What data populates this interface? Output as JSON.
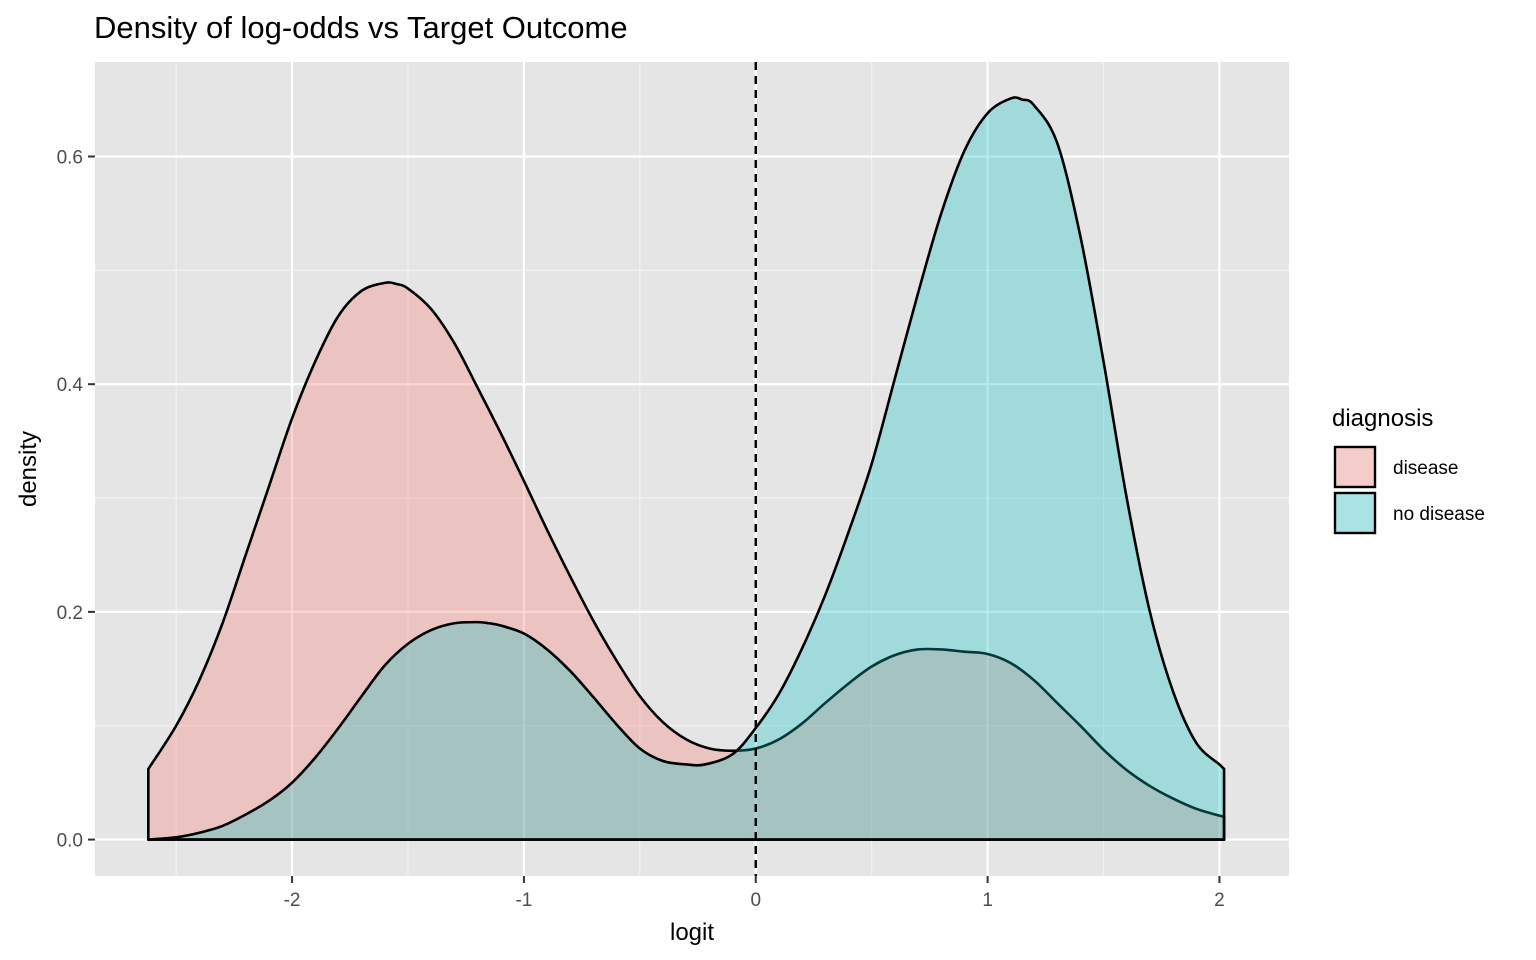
{
  "chart_data": {
    "type": "area",
    "title": "Density of log-odds vs Target Outcome",
    "xlabel": "logit",
    "ylabel": "density",
    "xlim": [
      -2.85,
      2.3
    ],
    "ylim": [
      -0.032,
      0.683
    ],
    "x_ticks": [
      -2,
      -1,
      0,
      1,
      2
    ],
    "x_tick_labels": [
      "-2",
      "-1",
      "0",
      "1",
      "2"
    ],
    "y_ticks": [
      0.0,
      0.2,
      0.4,
      0.6
    ],
    "y_tick_labels": [
      "0.0",
      "0.2",
      "0.4",
      "0.6"
    ],
    "grid": true,
    "vline": {
      "x": 0,
      "style": "dashed"
    },
    "legend": {
      "title": "diagnosis",
      "position": "right"
    },
    "series": [
      {
        "name": "disease",
        "color": "#F8766D",
        "x": [
          -2.62,
          -2.5,
          -2.4,
          -2.3,
          -2.2,
          -2.1,
          -2.0,
          -1.9,
          -1.8,
          -1.7,
          -1.6,
          -1.55,
          -1.5,
          -1.4,
          -1.3,
          -1.2,
          -1.1,
          -1.0,
          -0.9,
          -0.8,
          -0.7,
          -0.6,
          -0.5,
          -0.4,
          -0.3,
          -0.2,
          -0.1,
          0.0,
          0.1,
          0.2,
          0.3,
          0.4,
          0.5,
          0.6,
          0.7,
          0.8,
          0.9,
          1.0,
          1.1,
          1.2,
          1.3,
          1.4,
          1.5,
          1.6,
          1.7,
          1.8,
          1.9,
          2.0,
          2.02
        ],
        "y": [
          0.062,
          0.1,
          0.14,
          0.19,
          0.25,
          0.31,
          0.37,
          0.42,
          0.46,
          0.482,
          0.489,
          0.488,
          0.484,
          0.466,
          0.436,
          0.397,
          0.357,
          0.315,
          0.272,
          0.231,
          0.192,
          0.157,
          0.126,
          0.103,
          0.088,
          0.08,
          0.078,
          0.08,
          0.088,
          0.102,
          0.12,
          0.137,
          0.152,
          0.162,
          0.167,
          0.167,
          0.165,
          0.163,
          0.155,
          0.14,
          0.12,
          0.1,
          0.079,
          0.061,
          0.047,
          0.036,
          0.027,
          0.021,
          0.02
        ]
      },
      {
        "name": "no disease",
        "color": "#00BFC4",
        "x": [
          -2.62,
          -2.5,
          -2.4,
          -2.3,
          -2.2,
          -2.1,
          -2.0,
          -1.9,
          -1.8,
          -1.7,
          -1.6,
          -1.5,
          -1.4,
          -1.3,
          -1.2,
          -1.15,
          -1.1,
          -1.0,
          -0.9,
          -0.8,
          -0.7,
          -0.6,
          -0.5,
          -0.4,
          -0.3,
          -0.22,
          -0.1,
          0.0,
          0.1,
          0.2,
          0.3,
          0.4,
          0.5,
          0.6,
          0.7,
          0.8,
          0.9,
          1.0,
          1.1,
          1.15,
          1.2,
          1.3,
          1.4,
          1.5,
          1.6,
          1.7,
          1.8,
          1.9,
          2.0,
          2.02
        ],
        "y": [
          0.0,
          0.002,
          0.006,
          0.012,
          0.022,
          0.034,
          0.05,
          0.072,
          0.098,
          0.126,
          0.153,
          0.172,
          0.184,
          0.19,
          0.191,
          0.19,
          0.188,
          0.181,
          0.167,
          0.148,
          0.125,
          0.101,
          0.08,
          0.069,
          0.066,
          0.066,
          0.075,
          0.098,
          0.128,
          0.168,
          0.215,
          0.27,
          0.33,
          0.405,
          0.48,
          0.55,
          0.605,
          0.638,
          0.651,
          0.65,
          0.645,
          0.612,
          0.53,
          0.42,
          0.3,
          0.2,
          0.13,
          0.085,
          0.066,
          0.062
        ]
      }
    ]
  }
}
